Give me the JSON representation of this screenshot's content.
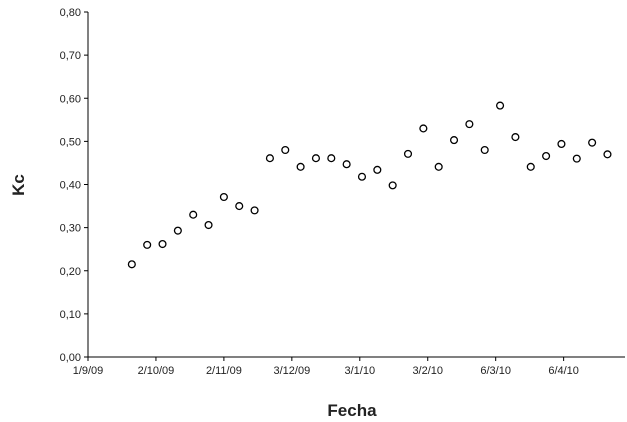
{
  "chart_data": {
    "type": "scatter",
    "xlabel": "Fecha",
    "ylabel": "Kc",
    "ylim": [
      0,
      0.8
    ],
    "xlim": [
      "2009-09-01",
      "2010-05-04"
    ],
    "grid": false,
    "legend": "none",
    "y_ticks": [
      "0,00",
      "0,10",
      "0,20",
      "0,30",
      "0,40",
      "0,50",
      "0,60",
      "0,70",
      "0,80"
    ],
    "x_ticks": [
      {
        "label": "1/9/09",
        "date": "2009-09-01"
      },
      {
        "label": "2/10/09",
        "date": "2009-10-02"
      },
      {
        "label": "2/11/09",
        "date": "2009-11-02"
      },
      {
        "label": "3/12/09",
        "date": "2009-12-03"
      },
      {
        "label": "3/1/10",
        "date": "2010-01-03"
      },
      {
        "label": "3/2/10",
        "date": "2010-02-03"
      },
      {
        "label": "6/3/10",
        "date": "2010-03-06"
      },
      {
        "label": "6/4/10",
        "date": "2010-04-06"
      }
    ],
    "marker_color": "#000000",
    "series": [
      {
        "points": [
          {
            "x": "2009-09-21",
            "y": 0.215
          },
          {
            "x": "2009-09-28",
            "y": 0.26
          },
          {
            "x": "2009-10-05",
            "y": 0.262
          },
          {
            "x": "2009-10-12",
            "y": 0.293
          },
          {
            "x": "2009-10-19",
            "y": 0.33
          },
          {
            "x": "2009-10-26",
            "y": 0.306
          },
          {
            "x": "2009-11-02",
            "y": 0.371
          },
          {
            "x": "2009-11-09",
            "y": 0.35
          },
          {
            "x": "2009-11-16",
            "y": 0.34
          },
          {
            "x": "2009-11-23",
            "y": 0.461
          },
          {
            "x": "2009-11-30",
            "y": 0.48
          },
          {
            "x": "2009-12-07",
            "y": 0.441
          },
          {
            "x": "2009-12-14",
            "y": 0.461
          },
          {
            "x": "2009-12-21",
            "y": 0.461
          },
          {
            "x": "2009-12-28",
            "y": 0.447
          },
          {
            "x": "2010-01-04",
            "y": 0.418
          },
          {
            "x": "2010-01-11",
            "y": 0.434
          },
          {
            "x": "2010-01-18",
            "y": 0.398
          },
          {
            "x": "2010-01-25",
            "y": 0.471
          },
          {
            "x": "2010-02-01",
            "y": 0.53
          },
          {
            "x": "2010-02-08",
            "y": 0.441
          },
          {
            "x": "2010-02-15",
            "y": 0.503
          },
          {
            "x": "2010-02-22",
            "y": 0.54
          },
          {
            "x": "2010-03-01",
            "y": 0.48
          },
          {
            "x": "2010-03-08",
            "y": 0.583
          },
          {
            "x": "2010-03-15",
            "y": 0.51
          },
          {
            "x": "2010-03-22",
            "y": 0.441
          },
          {
            "x": "2010-03-29",
            "y": 0.466
          },
          {
            "x": "2010-04-05",
            "y": 0.494
          },
          {
            "x": "2010-04-12",
            "y": 0.46
          },
          {
            "x": "2010-04-19",
            "y": 0.497
          },
          {
            "x": "2010-04-26",
            "y": 0.47
          }
        ]
      }
    ]
  }
}
